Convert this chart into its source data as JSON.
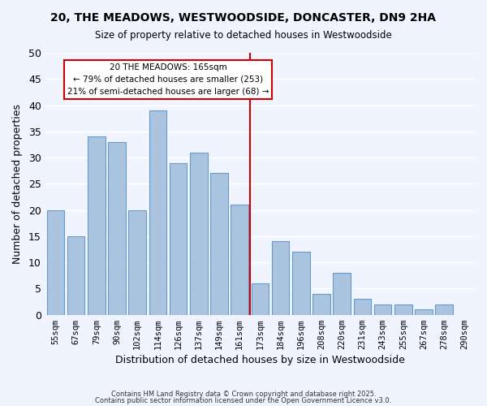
{
  "title1": "20, THE MEADOWS, WESTWOODSIDE, DONCASTER, DN9 2HA",
  "title2": "Size of property relative to detached houses in Westwoodside",
  "xlabel": "Distribution of detached houses by size in Westwoodside",
  "ylabel": "Number of detached properties",
  "categories": [
    "55sqm",
    "67sqm",
    "79sqm",
    "90sqm",
    "102sqm",
    "114sqm",
    "126sqm",
    "137sqm",
    "149sqm",
    "161sqm",
    "173sqm",
    "184sqm",
    "196sqm",
    "208sqm",
    "220sqm",
    "231sqm",
    "243sqm",
    "255sqm",
    "267sqm",
    "278sqm",
    "290sqm"
  ],
  "values": [
    20,
    15,
    34,
    33,
    20,
    39,
    29,
    31,
    27,
    21,
    6,
    14,
    12,
    4,
    8,
    3,
    2,
    2,
    1,
    2,
    0
  ],
  "bar_color": "#aac4e0",
  "bar_edge_color": "#6699cc",
  "property_line_x": 9.5,
  "property_label": "20 THE MEADOWS: 165sqm",
  "annotation_line1": "← 79% of detached houses are smaller (253)",
  "annotation_line2": "21% of semi-detached houses are larger (68) →",
  "annotation_box_color": "#ffffff",
  "annotation_box_edge": "#cc0000",
  "property_line_color": "#cc0000",
  "ylim": [
    0,
    50
  ],
  "yticks": [
    0,
    5,
    10,
    15,
    20,
    25,
    30,
    35,
    40,
    45,
    50
  ],
  "footer1": "Contains HM Land Registry data © Crown copyright and database right 2025.",
  "footer2": "Contains public sector information licensed under the Open Government Licence v3.0.",
  "bg_color": "#f0f4ff",
  "grid_color": "#ffffff"
}
